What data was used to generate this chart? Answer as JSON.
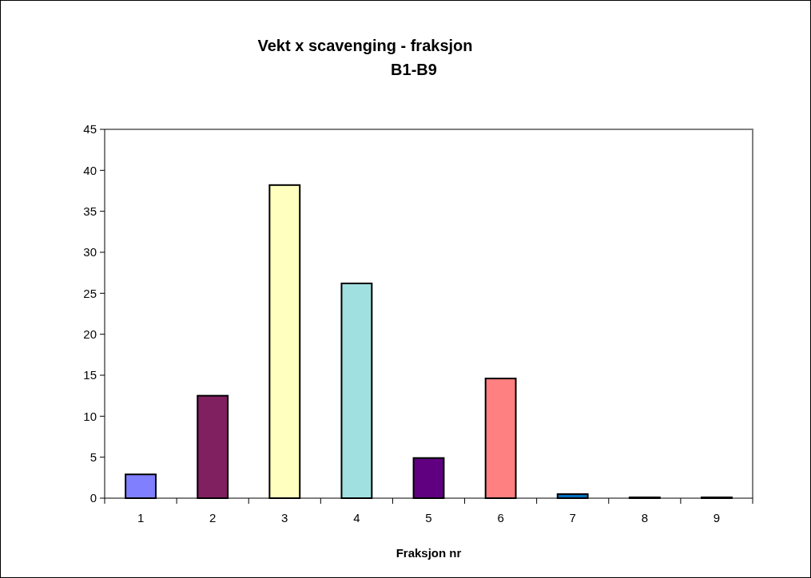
{
  "chart_data": {
    "type": "bar",
    "title": "Vekt x scavenging - fraksjon\nB1-B9",
    "xlabel": "Fraksjon nr",
    "categories": [
      "1",
      "2",
      "3",
      "4",
      "5",
      "6",
      "7",
      "8",
      "9"
    ],
    "values": [
      2.9,
      12.5,
      38.2,
      26.2,
      4.9,
      14.6,
      0.5,
      0.1,
      0.1
    ],
    "colors": [
      "#8080ff",
      "#802060",
      "#ffffc0",
      "#a0e0e0",
      "#600080",
      "#ff8080",
      "#0070c0",
      "#000080",
      "#ff00ff"
    ],
    "ylim": [
      0,
      45
    ],
    "yticks": [
      0,
      5,
      10,
      15,
      20,
      25,
      30,
      35,
      40,
      45
    ],
    "grid": false
  }
}
